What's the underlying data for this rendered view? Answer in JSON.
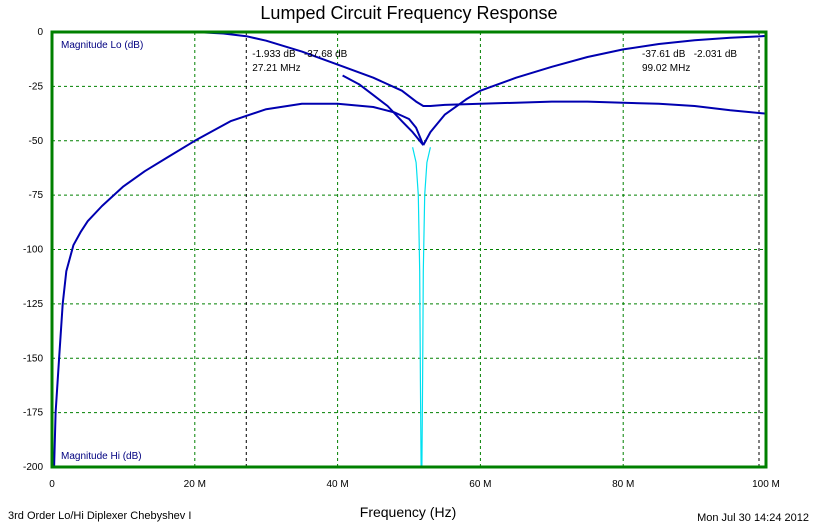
{
  "chart_data": {
    "type": "line",
    "title": "Lumped Circuit Frequency Response",
    "xlabel": "Frequency (Hz)",
    "ylabel": "",
    "xlim": [
      0,
      100
    ],
    "ylim": [
      -200,
      0
    ],
    "x_ticks": [
      {
        "value": 0,
        "label": "0"
      },
      {
        "value": 20,
        "label": "20 M"
      },
      {
        "value": 40,
        "label": "40 M"
      },
      {
        "value": 60,
        "label": "60 M"
      },
      {
        "value": 80,
        "label": "80 M"
      },
      {
        "value": 100,
        "label": "100 M"
      }
    ],
    "y_ticks": [
      {
        "value": 0,
        "label": "0"
      },
      {
        "value": -25,
        "label": "-25"
      },
      {
        "value": -50,
        "label": "-50"
      },
      {
        "value": -75,
        "label": "-75"
      },
      {
        "value": -100,
        "label": "-100"
      },
      {
        "value": -125,
        "label": "-125"
      },
      {
        "value": -150,
        "label": "-150"
      },
      {
        "value": -175,
        "label": "-175"
      },
      {
        "value": -200,
        "label": "-200"
      }
    ],
    "grid": true,
    "series_labels": {
      "lo": "Magnitude Lo (dB)",
      "hi": "Magnitude Hi (dB)"
    },
    "series": [
      {
        "id": "lo",
        "color": "#0000b0",
        "x": [
          0,
          10,
          20,
          24,
          27.21,
          30,
          35,
          40,
          45,
          49,
          51,
          52,
          53,
          55,
          60,
          65,
          70,
          75,
          80,
          85,
          90,
          95,
          100
        ],
        "y": [
          0,
          0,
          0,
          -0.7,
          -1.933,
          -4,
          -9,
          -15,
          -21,
          -27,
          -32,
          -34,
          -34,
          -33.5,
          -33,
          -32.5,
          -32,
          -32,
          -32.5,
          -33,
          -34,
          -36,
          -37.5
        ]
      },
      {
        "id": "hi",
        "color": "#0000b0",
        "x": [
          0.3,
          0.5,
          1,
          1.5,
          2,
          3,
          4,
          5,
          7,
          10,
          13,
          16,
          20,
          25,
          30,
          35,
          40,
          45,
          48,
          50,
          51,
          52
        ],
        "y": [
          -200,
          -175,
          -150,
          -125,
          -110,
          -98,
          -92,
          -87,
          -80,
          -71,
          -64,
          -58,
          -50,
          -41,
          -35.5,
          -33,
          -33,
          -34.5,
          -37,
          -40,
          -44,
          -52
        ]
      },
      {
        "id": "lo_stop",
        "color": "#0000b0",
        "x": [
          40.7,
          43,
          45,
          47,
          49,
          50.5,
          51.5,
          52
        ],
        "y": [
          -20,
          -24,
          -29,
          -34,
          -41,
          -46,
          -50,
          -52
        ]
      },
      {
        "id": "hi_pass",
        "color": "#0000b0",
        "x": [
          52,
          53,
          55,
          58,
          60,
          65,
          70,
          75,
          80,
          85,
          90,
          95,
          99.02,
          100
        ],
        "y": [
          -52,
          -46,
          -38,
          -31,
          -27,
          -21,
          -16,
          -11.5,
          -8,
          -5.5,
          -3.8,
          -2.6,
          -2.031,
          -1.8
        ]
      },
      {
        "id": "notch",
        "color": "#00e0f0",
        "x": [
          50.5,
          51,
          51.3,
          51.5,
          51.6,
          51.7,
          51.75,
          51.8,
          51.9,
          52,
          52.2,
          52.5,
          53
        ],
        "y": [
          -53,
          -60,
          -75,
          -110,
          -160,
          -200,
          -200,
          -200,
          -160,
          -110,
          -75,
          -60,
          -53
        ]
      }
    ],
    "markers": [
      {
        "x": 27.21,
        "lines": [
          "-1.933 dB   -37.68 dB",
          "27.21 MHz"
        ]
      },
      {
        "x": 99.02,
        "lines": [
          "-37.61 dB   -2.031 dB",
          "99.02 MHz"
        ]
      }
    ],
    "footer_left": "3rd Order Lo/Hi Diplexer Chebyshev I",
    "footer_right": "Mon Jul 30 14:24 2012",
    "colors": {
      "plot_border": "#008000",
      "grid": "#008000",
      "curve": "#0000b0",
      "notch": "#00e0f0",
      "marker_line": "#000000"
    }
  }
}
